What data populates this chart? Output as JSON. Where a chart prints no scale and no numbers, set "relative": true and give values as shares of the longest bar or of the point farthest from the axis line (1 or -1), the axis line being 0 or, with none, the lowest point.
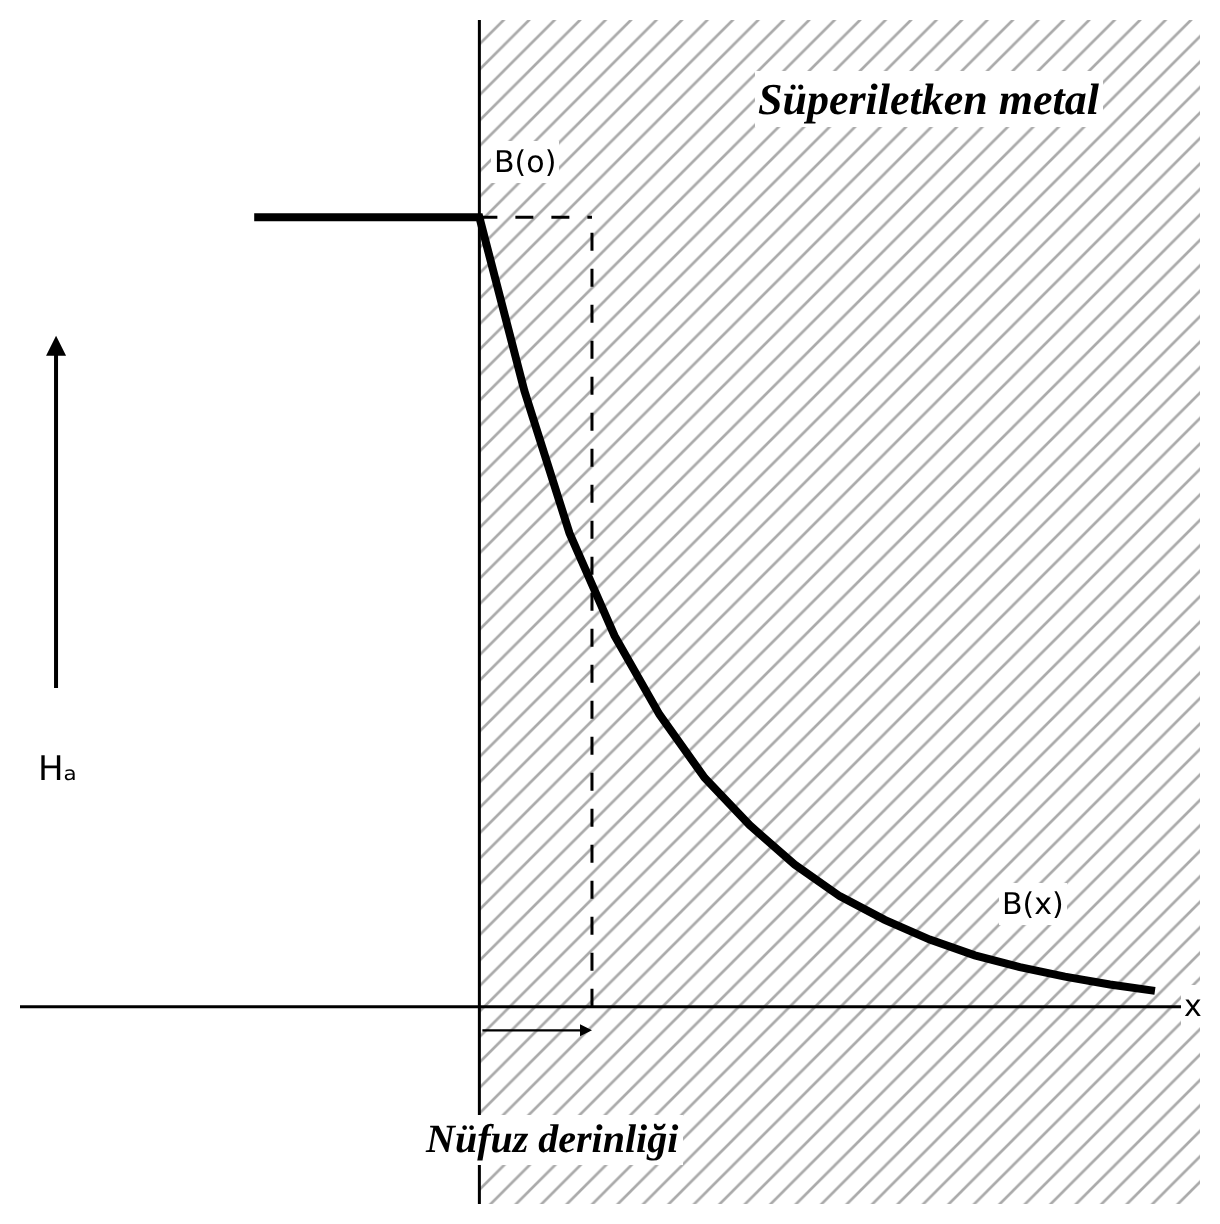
{
  "chart_data": {
    "type": "line",
    "relative": true,
    "categories": [
      null,
      null,
      null,
      null,
      null,
      null,
      null,
      null,
      null,
      null,
      null,
      null,
      null,
      null,
      null,
      null,
      null,
      null,
      null,
      null,
      null
    ],
    "series": [
      {
        "color": "#000000",
        "values": [
          1,
          1,
          1,
          1,
          1,
          1,
          0.78,
          0.6,
          0.47,
          0.37,
          0.29,
          0.23,
          0.18,
          0.14,
          0.11,
          0.085,
          0.065,
          0.05,
          0.038,
          0.028,
          0.02
        ]
      }
    ],
    "marker": "none",
    "line_style": "solid",
    "annotations": [
      "Süperiletken metal",
      "Nüfuz derinliği",
      "B(o)",
      "B(x)",
      "Hₐ",
      "x"
    ]
  }
}
